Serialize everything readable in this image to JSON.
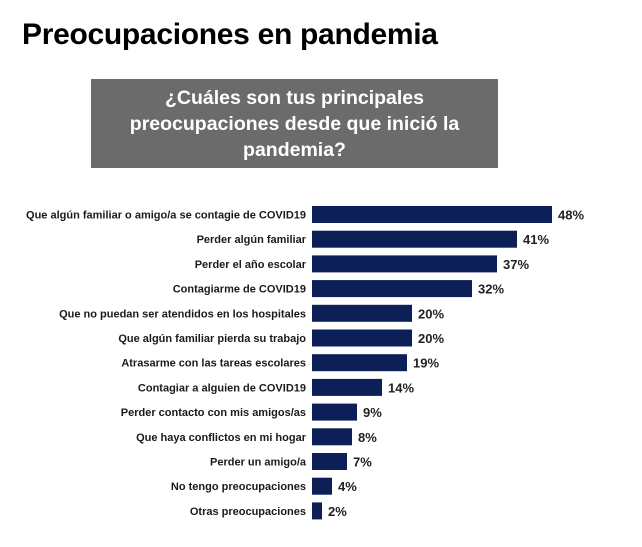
{
  "header": {
    "title": "Preocupaciones en pandemia",
    "subtitle": "¿Cuáles son tus principales preocupaciones desde que inició la pandemia?"
  },
  "colors": {
    "bar": "#0d1f57",
    "subtitle_bg": "#6b6b6b"
  },
  "chart_data": {
    "type": "bar",
    "orientation": "horizontal",
    "categories": [
      "Que algún familiar o amigo/a se contagie de COVID19",
      "Perder algún familiar",
      "Perder el año escolar",
      "Contagiarme de COVID19",
      "Que no puedan ser atendidos en los hospitales",
      "Que algún familiar pierda su trabajo",
      "Atrasarme con las tareas escolares",
      "Contagiar a alguien de COVID19",
      "Perder contacto con mis amigos/as",
      "Que haya conflictos en mi hogar",
      "Perder un amigo/a",
      "No tengo preocupaciones",
      "Otras preocupaciones"
    ],
    "values": [
      48,
      41,
      37,
      32,
      20,
      20,
      19,
      14,
      9,
      8,
      7,
      4,
      2
    ],
    "value_labels": [
      "48%",
      "41%",
      "37%",
      "32%",
      "20%",
      "20%",
      "19%",
      "14%",
      "9%",
      "8%",
      "7%",
      "4%",
      "2%"
    ],
    "unit": "%",
    "grid": false,
    "legend": "none"
  }
}
